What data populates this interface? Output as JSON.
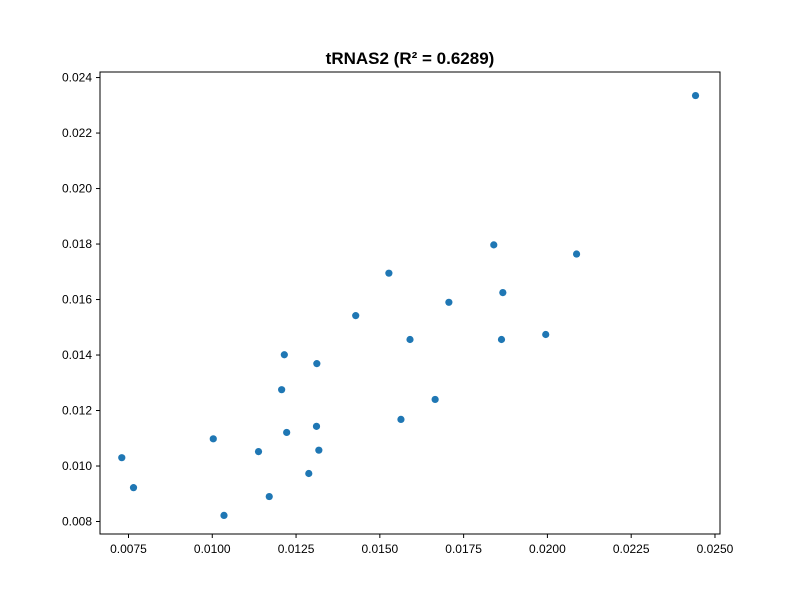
{
  "chart_data": {
    "type": "scatter",
    "title": "tRNAS2 (R² = 0.6289)",
    "xlabel": "",
    "ylabel": "",
    "xlim": [
      0.00665,
      0.02515
    ],
    "ylim": [
      0.00755,
      0.0242
    ],
    "xticks": [
      0.0075,
      0.01,
      0.0125,
      0.015,
      0.0175,
      0.02,
      0.0225,
      0.025
    ],
    "xtick_labels": [
      "0.0075",
      "0.0100",
      "0.0125",
      "0.0150",
      "0.0175",
      "0.0200",
      "0.0225",
      "0.0250"
    ],
    "yticks": [
      0.008,
      0.01,
      0.012,
      0.014,
      0.016,
      0.018,
      0.02,
      0.022,
      0.024
    ],
    "ytick_labels": [
      "0.008",
      "0.010",
      "0.012",
      "0.014",
      "0.016",
      "0.018",
      "0.020",
      "0.022",
      "0.024"
    ],
    "grid": false,
    "marker_color": "#1f77b4",
    "points": [
      {
        "x": 0.0073,
        "y": 0.0103
      },
      {
        "x": 0.00765,
        "y": 0.00922
      },
      {
        "x": 0.01003,
        "y": 0.01098
      },
      {
        "x": 0.01035,
        "y": 0.00822
      },
      {
        "x": 0.01138,
        "y": 0.01052
      },
      {
        "x": 0.0117,
        "y": 0.0089
      },
      {
        "x": 0.01207,
        "y": 0.01275
      },
      {
        "x": 0.01215,
        "y": 0.01401
      },
      {
        "x": 0.01222,
        "y": 0.01121
      },
      {
        "x": 0.01288,
        "y": 0.00973
      },
      {
        "x": 0.01311,
        "y": 0.01143
      },
      {
        "x": 0.01312,
        "y": 0.01369
      },
      {
        "x": 0.01318,
        "y": 0.01057
      },
      {
        "x": 0.01428,
        "y": 0.01542
      },
      {
        "x": 0.01527,
        "y": 0.01695
      },
      {
        "x": 0.01563,
        "y": 0.01168
      },
      {
        "x": 0.0159,
        "y": 0.01456
      },
      {
        "x": 0.01665,
        "y": 0.0124
      },
      {
        "x": 0.01706,
        "y": 0.0159
      },
      {
        "x": 0.0184,
        "y": 0.01797
      },
      {
        "x": 0.01863,
        "y": 0.01456
      },
      {
        "x": 0.01867,
        "y": 0.01625
      },
      {
        "x": 0.01995,
        "y": 0.01474
      },
      {
        "x": 0.02087,
        "y": 0.01764
      },
      {
        "x": 0.02442,
        "y": 0.02335
      }
    ]
  }
}
